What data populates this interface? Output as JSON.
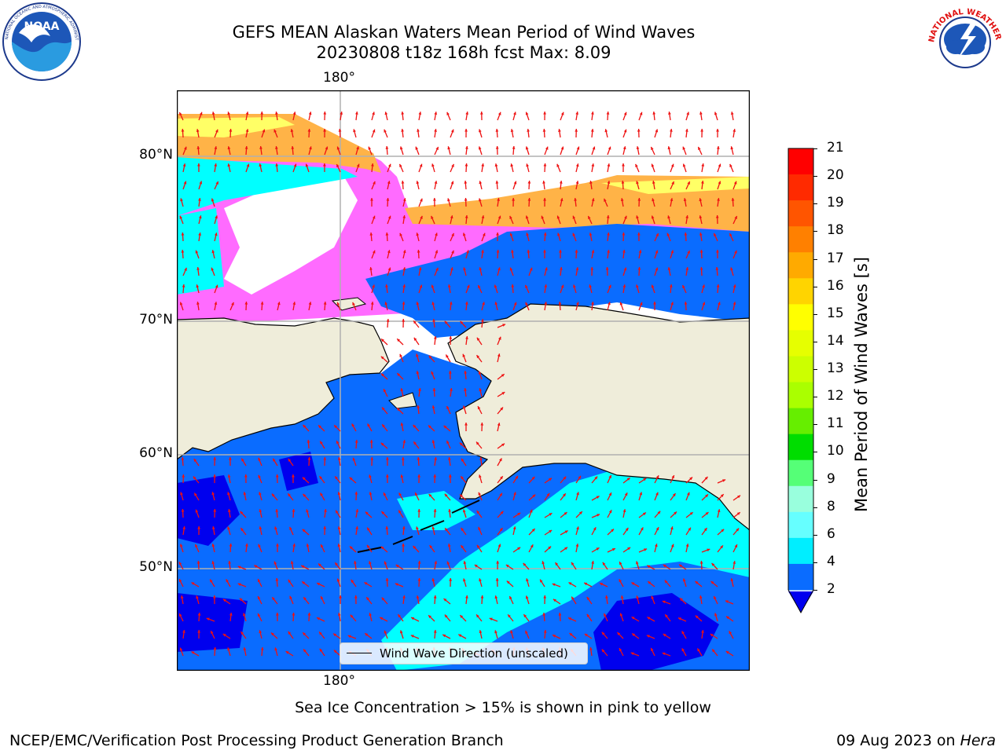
{
  "header": {
    "title_line1": "GEFS MEAN Alaskan Waters Mean Period of Wind Waves",
    "title_line2": "20230808 t18z 168h fcst   Max: 8.09"
  },
  "logos": {
    "noaa": {
      "text": "NOAA",
      "ring_text": "NATIONAL OCEANIC AND ATMOSPHERIC ADMINISTRATION · U.S. DEPARTMENT OF COMMERCE"
    },
    "nws": {
      "ring_text": "NATIONAL WEATHER SERVICE"
    }
  },
  "map": {
    "lon_label_top": "180°",
    "lon_label_bottom": "180°",
    "lat_labels": [
      "80°N",
      "70°N",
      "60°N",
      "50°N"
    ],
    "legend_label": "Wind Wave Direction (unscaled)",
    "colors": {
      "land": "#efedda",
      "ocean_dark": "#0000ee",
      "ocean_mid": "#0a6cff",
      "ocean_light": "#00ffff",
      "ice_pink": "#ff6bff",
      "ice_orange": "#ffb347",
      "ice_yellow": "#ffff66",
      "arrow": "#ee1111"
    }
  },
  "colorbar": {
    "label": "Mean Period of Wind Waves [s]",
    "ticks": [
      "21",
      "20",
      "19",
      "18",
      "17",
      "16",
      "15",
      "14",
      "13",
      "12",
      "11",
      "10",
      "9",
      "8",
      "6",
      "4",
      "2"
    ],
    "colors": [
      "#ff0000",
      "#ff2a00",
      "#ff5500",
      "#ff8000",
      "#ffaa00",
      "#ffd400",
      "#ffff00",
      "#e6ff00",
      "#ccff00",
      "#aaff00",
      "#66ee00",
      "#00dd00",
      "#55ff77",
      "#99ffdd",
      "#66ffff",
      "#00eeff",
      "#0a6cff"
    ],
    "extend_color": "#0000ee"
  },
  "caption": "Sea Ice Concentration > 15% is shown in pink to yellow",
  "credits": {
    "left": "NCEP/EMC/Verification Post Processing Product Generation Branch",
    "right_date": "09 Aug 2023 on ",
    "right_host": "Hera"
  }
}
